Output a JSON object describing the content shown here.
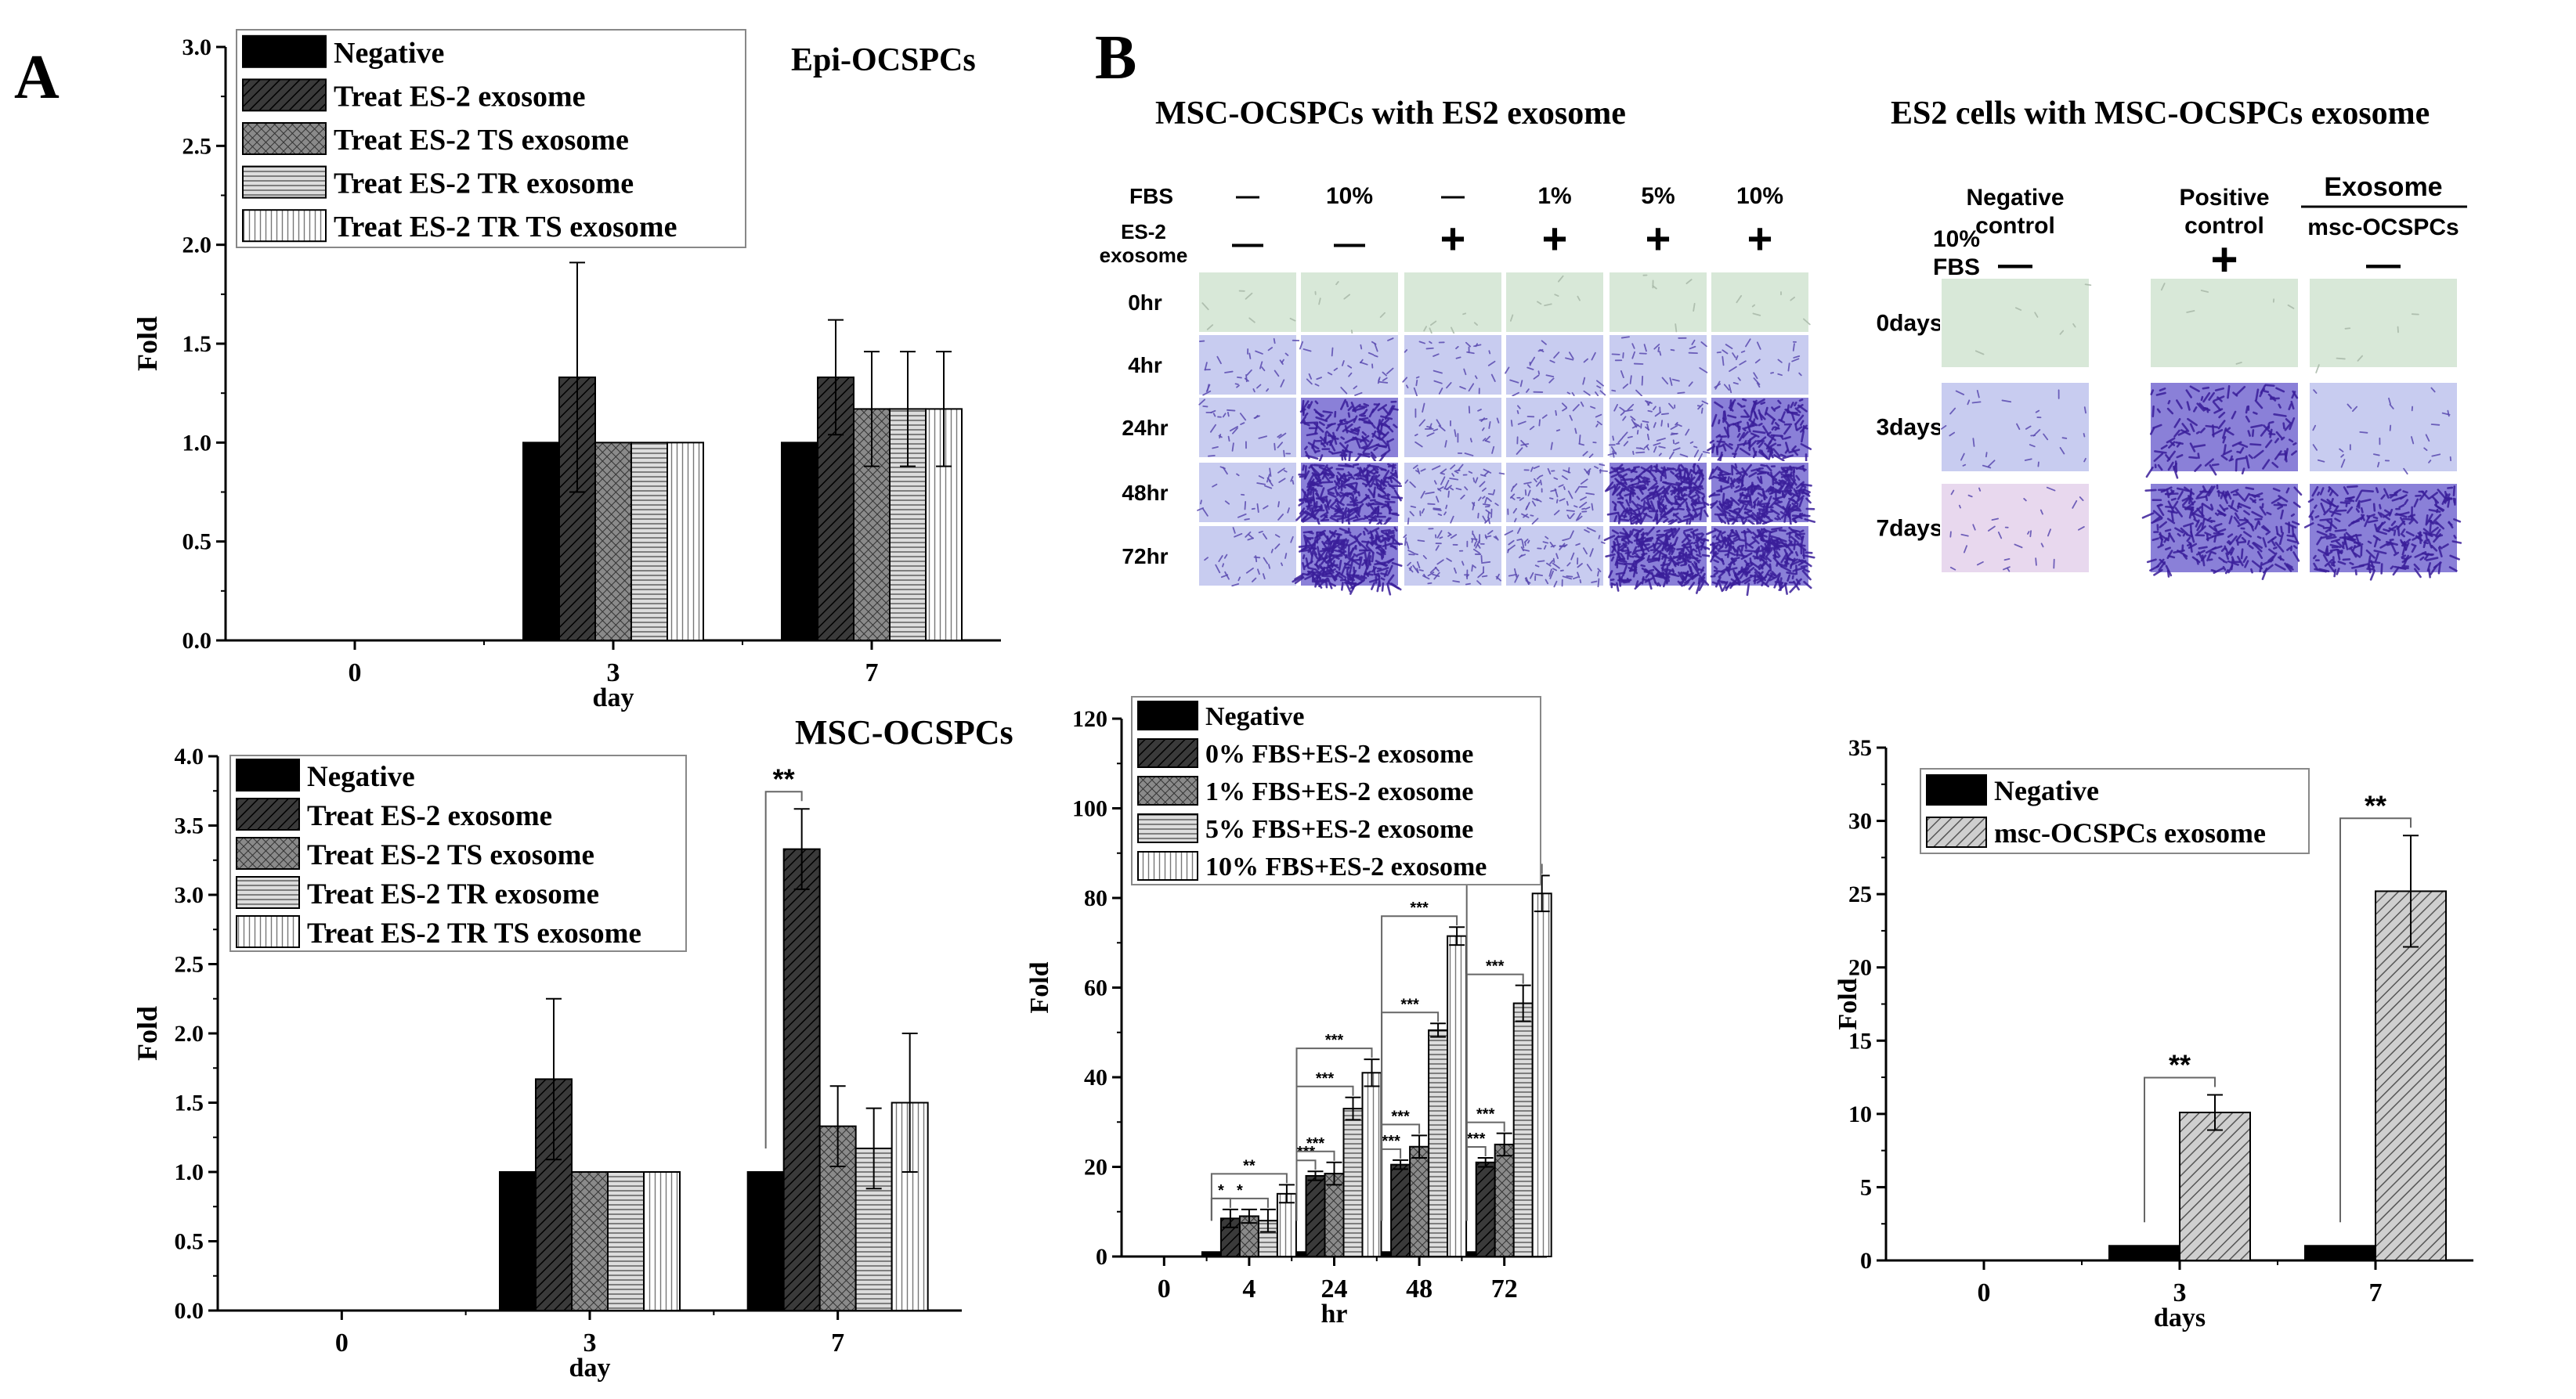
{
  "panel_labels": {
    "a": "A",
    "b": "B"
  },
  "panel_b_titles": {
    "left": "MSC-OCSPCs with ES2 exosome",
    "right": "ES2 cells with MSC-OCSPCs exosome"
  },
  "migration_grid_left": {
    "row_header_1": "FBS",
    "row_header_2": "ES-2\nexosome",
    "fbs_values": [
      "—",
      "10%",
      "—",
      "1%",
      "5%",
      "10%"
    ],
    "exosome_values": [
      "—",
      "—",
      "+",
      "+",
      "+",
      "+"
    ],
    "time_rows": [
      "0hr",
      "4hr",
      "24hr",
      "48hr",
      "72hr"
    ],
    "cell_levels": [
      [
        0,
        0,
        0,
        0,
        0,
        0
      ],
      [
        1,
        1,
        1,
        1,
        1,
        1
      ],
      [
        1,
        3,
        1,
        1,
        2,
        3
      ],
      [
        1,
        4,
        2,
        2,
        4,
        4
      ],
      [
        1,
        4,
        2,
        2,
        4,
        4
      ]
    ]
  },
  "migration_grid_right": {
    "fbs_header": "10%\nFBS",
    "col_headers": [
      "Negative\ncontrol",
      "Positive\ncontrol",
      "msc-OCSPCs"
    ],
    "exosome_header": "Exosome",
    "fbs_values": [
      "—",
      "+",
      "—"
    ],
    "time_rows": [
      "0days",
      "3days",
      "7days"
    ],
    "cell_levels": [
      [
        0,
        0,
        0
      ],
      [
        1,
        3,
        1
      ],
      [
        1,
        4,
        4
      ]
    ]
  },
  "series_colors": {
    "negative": "#000000",
    "dark_hatch": "#404040",
    "cross_hatch": "#7a7a7a",
    "horizontal": "#cccccc",
    "vertical": "#ffffff",
    "diagonal": "#bbbbbb",
    "stain_light": "#9aa0d8",
    "stain_dark": "#3a1e9a",
    "stain_pink": "#c9a0d8",
    "background_green": "#d8e8d8"
  },
  "chart_data": [
    {
      "id": "A1",
      "type": "bar",
      "title": "Epi-OCSPCs",
      "xlabel": "day",
      "ylabel": "Fold",
      "categories": [
        "0",
        "3",
        "7"
      ],
      "ylim": [
        0,
        3.0
      ],
      "yticks": [
        "0.0",
        "0.5",
        "1.0",
        "1.5",
        "2.0",
        "2.5",
        "3.0"
      ],
      "series": [
        {
          "name": "Negative",
          "pattern": "solid",
          "values": [
            null,
            1.0,
            1.0
          ],
          "errors": [
            null,
            0,
            0
          ]
        },
        {
          "name": "Treat ES-2 exosome",
          "pattern": "dark",
          "values": [
            null,
            1.33,
            1.33
          ],
          "errors": [
            null,
            0.58,
            0.29
          ]
        },
        {
          "name": "Treat ES-2 TS exosome",
          "pattern": "cross",
          "values": [
            null,
            1.0,
            1.17
          ],
          "errors": [
            null,
            0,
            0.29
          ]
        },
        {
          "name": "Treat ES-2 TR exosome",
          "pattern": "horiz",
          "values": [
            null,
            1.0,
            1.17
          ],
          "errors": [
            null,
            0,
            0.29
          ]
        },
        {
          "name": "Treat ES-2 TR TS exosome",
          "pattern": "vert",
          "values": [
            null,
            1.0,
            1.17
          ],
          "errors": [
            null,
            0,
            0.29
          ]
        }
      ],
      "annotations": []
    },
    {
      "id": "A2",
      "type": "bar",
      "title": "MSC-OCSPCs",
      "xlabel": "day",
      "ylabel": "Fold",
      "categories": [
        "0",
        "3",
        "7"
      ],
      "ylim": [
        0,
        4.0
      ],
      "yticks": [
        "0.0",
        "0.5",
        "1.0",
        "1.5",
        "2.0",
        "2.5",
        "3.0",
        "3.5",
        "4.0"
      ],
      "series": [
        {
          "name": "Negative",
          "pattern": "solid",
          "values": [
            null,
            1.0,
            1.0
          ],
          "errors": [
            null,
            0,
            0
          ]
        },
        {
          "name": "Treat ES-2 exosome",
          "pattern": "dark",
          "values": [
            null,
            1.67,
            3.33
          ],
          "errors": [
            null,
            0.58,
            0.29
          ]
        },
        {
          "name": "Treat ES-2 TS exosome",
          "pattern": "cross",
          "values": [
            null,
            1.0,
            1.33
          ],
          "errors": [
            null,
            0,
            0.29
          ]
        },
        {
          "name": "Treat ES-2 TR exosome",
          "pattern": "horiz",
          "values": [
            null,
            1.0,
            1.17
          ],
          "errors": [
            null,
            0,
            0.29
          ]
        },
        {
          "name": "Treat ES-2 TR TS exosome",
          "pattern": "vert",
          "values": [
            null,
            1.0,
            1.5
          ],
          "errors": [
            null,
            0,
            0.5
          ]
        }
      ],
      "annotations": [
        {
          "text": "**",
          "category": 2,
          "from_series": 0,
          "to_series": 1
        }
      ]
    },
    {
      "id": "B1",
      "type": "bar",
      "title": "",
      "xlabel": "hr",
      "ylabel": "Fold",
      "categories": [
        "0",
        "4",
        "24",
        "48",
        "72"
      ],
      "ylim": [
        0,
        120
      ],
      "yticks": [
        "0",
        "20",
        "40",
        "60",
        "80",
        "100",
        "120"
      ],
      "series": [
        {
          "name": "Negative",
          "pattern": "solid",
          "values": [
            null,
            1,
            1,
            1,
            1
          ],
          "errors": [
            null,
            0,
            0,
            0,
            0
          ]
        },
        {
          "name": "0% FBS+ES-2 exosome",
          "pattern": "dark",
          "values": [
            null,
            8.5,
            18,
            20.5,
            21
          ],
          "errors": [
            null,
            2,
            1,
            1,
            1
          ]
        },
        {
          "name": "1% FBS+ES-2 exosome",
          "pattern": "cross",
          "values": [
            null,
            9,
            18.5,
            24.5,
            25
          ],
          "errors": [
            null,
            1.5,
            2.5,
            2.5,
            2.5
          ]
        },
        {
          "name": "5% FBS+ES-2 exosome",
          "pattern": "horiz",
          "values": [
            null,
            8,
            33,
            50.5,
            56.5
          ],
          "errors": [
            null,
            2.5,
            2.5,
            1.5,
            4
          ]
        },
        {
          "name": "10% FBS+ES-2 exosome",
          "pattern": "vert",
          "values": [
            null,
            14,
            41,
            71.5,
            81
          ],
          "errors": [
            null,
            2,
            3,
            2,
            4
          ]
        }
      ],
      "annotations": [
        {
          "text": "*",
          "category": 1,
          "from_series": 0,
          "to_series": 1
        },
        {
          "text": "*",
          "category": 1,
          "from_series": 0,
          "to_series": 3
        },
        {
          "text": "**",
          "category": 1,
          "from_series": 0,
          "to_series": 4
        },
        {
          "text": "***",
          "category": 2,
          "from_series": 0,
          "to_series": 1
        },
        {
          "text": "***",
          "category": 2,
          "from_series": 0,
          "to_series": 2
        },
        {
          "text": "***",
          "category": 2,
          "from_series": 0,
          "to_series": 3
        },
        {
          "text": "***",
          "category": 2,
          "from_series": 0,
          "to_series": 4
        },
        {
          "text": "***",
          "category": 3,
          "from_series": 0,
          "to_series": 1
        },
        {
          "text": "***",
          "category": 3,
          "from_series": 0,
          "to_series": 2
        },
        {
          "text": "***",
          "category": 3,
          "from_series": 0,
          "to_series": 3
        },
        {
          "text": "***",
          "category": 3,
          "from_series": 0,
          "to_series": 4
        },
        {
          "text": "***",
          "category": 4,
          "from_series": 0,
          "to_series": 1
        },
        {
          "text": "***",
          "category": 4,
          "from_series": 0,
          "to_series": 2
        },
        {
          "text": "***",
          "category": 4,
          "from_series": 0,
          "to_series": 3
        },
        {
          "text": "***",
          "category": 4,
          "from_series": 0,
          "to_series": 4
        }
      ]
    },
    {
      "id": "B2",
      "type": "bar",
      "title": "",
      "xlabel": "days",
      "ylabel": "Fold",
      "categories": [
        "0",
        "3",
        "7"
      ],
      "ylim": [
        0,
        35
      ],
      "yticks": [
        "0",
        "5",
        "10",
        "15",
        "20",
        "25",
        "30",
        "35"
      ],
      "series": [
        {
          "name": "Negative",
          "pattern": "solid",
          "values": [
            null,
            1,
            1
          ],
          "errors": [
            null,
            0,
            0
          ]
        },
        {
          "name": "msc-OCSPCs exosome",
          "pattern": "diag",
          "values": [
            null,
            10.1,
            25.2
          ],
          "errors": [
            null,
            1.2,
            3.8
          ]
        }
      ],
      "annotations": [
        {
          "text": "**",
          "category": 1,
          "from_series": 0,
          "to_series": 1
        },
        {
          "text": "**",
          "category": 2,
          "from_series": 0,
          "to_series": 1
        }
      ]
    }
  ]
}
